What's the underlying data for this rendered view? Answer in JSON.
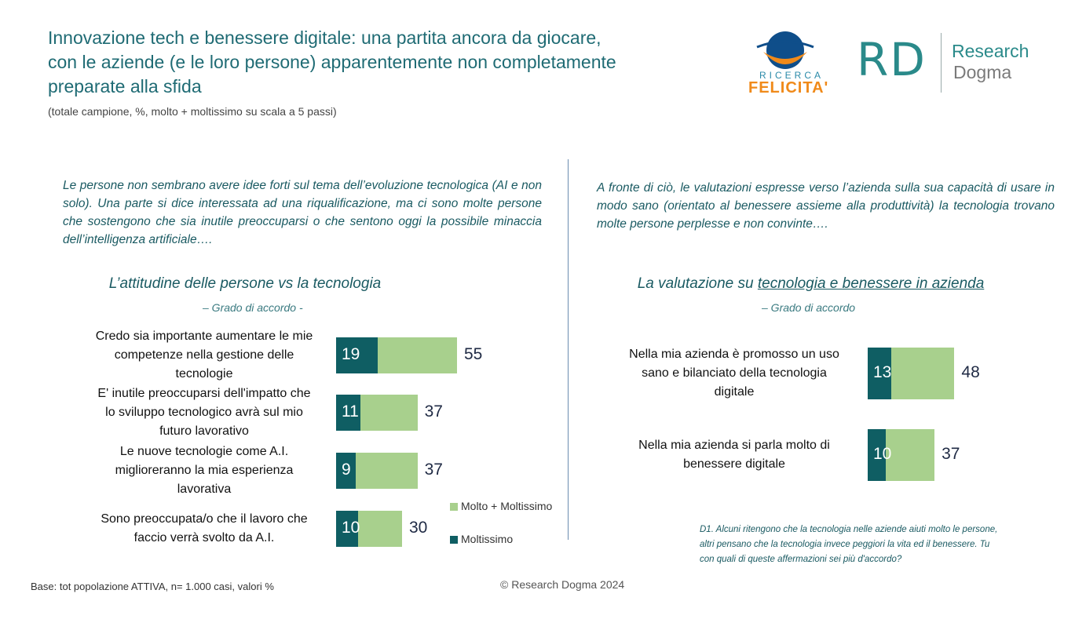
{
  "header": {
    "title_lines": [
      "Innovazione tech e benessere digitale: una partita ancora da giocare,",
      "con le aziende (e le loro persone) apparentemente non completamente",
      "preparate alla sfida"
    ],
    "subtitle": "(totale campione, %, molto + moltissimo su scala a 5 passi)"
  },
  "logos": {
    "felicita_small": "RICERCA",
    "felicita_big": "FELICITA'",
    "rd_letters": "RD",
    "rd_word1": "Research",
    "rd_word2": "Dogma"
  },
  "left": {
    "intro": "Le persone non sembrano avere idee forti sul tema dell’evoluzione tecnologica (AI e non solo). Una parte si dice interessata ad una riqualificazione, ma ci sono molte persone che sostengono che sia inutile preoccuparsi o che sentono oggi la possibile minaccia dell’intelligenza artificiale….",
    "chart_title": "L’attitudine delle persone vs la tecnologia",
    "chart_sub": "– Grado di accordo -"
  },
  "right": {
    "intro": "A fronte di ciò, le valutazioni espresse verso l’azienda sulla sua capacità di usare in modo sano (orientato al benessere assieme alla produttività) la tecnologia  trovano molte persone perplesse e non convinte….",
    "chart_title_pre": "La valutazione su ",
    "chart_title_u": "tecnologia e benessere  in azienda",
    "chart_sub": "– Grado di accordo"
  },
  "legend": {
    "total": "Molto + Moltissimo",
    "inner": "Moltissimo"
  },
  "colors": {
    "total": "#a8d08d",
    "inner": "#0f5e63",
    "title": "#1f6b74"
  },
  "chart_data": [
    {
      "type": "bar",
      "orientation": "horizontal",
      "title": "L’attitudine delle persone vs la tecnologia",
      "categories": [
        [
          "Credo sia importante aumentare le mie",
          "competenze nella gestione delle",
          "tecnologie"
        ],
        [
          "E' inutile preoccuparsi dell'impatto che",
          "lo sviluppo tecnologico avrà  sul mio",
          "futuro lavorativo"
        ],
        [
          "Le nuove tecnologie come A.I.",
          "miglioreranno la mia esperienza",
          "lavorativa"
        ],
        [
          "Sono preoccupata/o che il lavoro che",
          "faccio verrà svolto da A.I."
        ]
      ],
      "series": [
        {
          "name": "Molto + Moltissimo",
          "values": [
            55,
            37,
            37,
            30
          ]
        },
        {
          "name": "Moltissimo",
          "values": [
            19,
            11,
            9,
            10
          ]
        }
      ]
    },
    {
      "type": "bar",
      "orientation": "horizontal",
      "title": "La valutazione su tecnologia e benessere  in azienda",
      "categories": [
        [
          "Nella mia azienda è promosso un uso",
          "sano e bilanciato della tecnologia",
          "digitale"
        ],
        [
          "Nella mia azienda si parla molto di",
          "benessere digitale"
        ]
      ],
      "series": [
        {
          "name": "Molto + Moltissimo",
          "values": [
            48,
            37
          ]
        },
        {
          "name": "Moltissimo",
          "values": [
            13,
            10
          ]
        }
      ]
    }
  ],
  "note": "D1. Alcuni ritengono che la tecnologia nelle aziende aiuti molto le persone, altri pensano che la tecnologia invece peggiori la vita ed il benessere. Tu con quali di queste affermazioni sei più d'accordo?",
  "footer": {
    "base": "Base: tot popolazione ATTIVA, n= 1.000 casi, valori %",
    "copyright": "© Research Dogma 2024"
  }
}
